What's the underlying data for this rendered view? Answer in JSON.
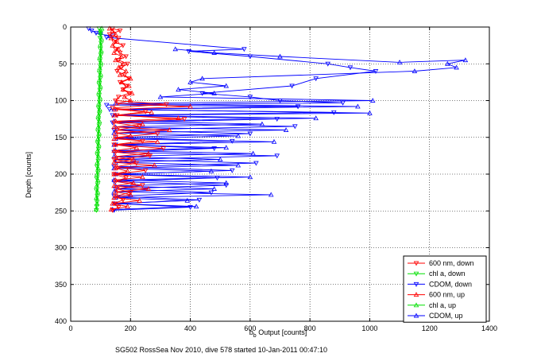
{
  "chart_data": {
    "type": "scatter",
    "title": "",
    "caption": "SG502 RossSea Nov 2010, dive 578 started 10-Jan-2011 00:47:10",
    "xlabel_main": "b",
    "xlabel_sub": "b",
    "xlabel_rest": " Output [counts]",
    "ylabel": "Depth [counts]",
    "xlim": [
      0,
      1400
    ],
    "ylim": [
      0,
      400
    ],
    "y_reversed": true,
    "grid": true,
    "x_ticks": [
      0,
      200,
      400,
      600,
      800,
      1000,
      1200,
      1400
    ],
    "y_ticks": [
      0,
      50,
      100,
      150,
      200,
      250,
      300,
      350,
      400
    ],
    "legend_position": "bottom-right",
    "series": [
      {
        "name": "600 nm, down",
        "color": "#ff0000",
        "marker": "triangle-down",
        "connected": true,
        "points": [
          [
            140,
            2
          ],
          [
            165,
            5
          ],
          [
            130,
            10
          ],
          [
            160,
            15
          ],
          [
            145,
            20
          ],
          [
            175,
            25
          ],
          [
            150,
            30
          ],
          [
            165,
            35
          ],
          [
            185,
            40
          ],
          [
            160,
            45
          ],
          [
            190,
            50
          ],
          [
            170,
            55
          ],
          [
            155,
            60
          ],
          [
            180,
            65
          ],
          [
            195,
            70
          ],
          [
            165,
            75
          ],
          [
            185,
            80
          ],
          [
            175,
            85
          ],
          [
            195,
            90
          ],
          [
            160,
            95
          ],
          [
            150,
            100
          ],
          [
            320,
            105
          ],
          [
            140,
            110
          ],
          [
            250,
            115
          ],
          [
            155,
            120
          ],
          [
            380,
            125
          ],
          [
            145,
            130
          ],
          [
            230,
            135
          ],
          [
            155,
            140
          ],
          [
            290,
            145
          ],
          [
            150,
            150
          ],
          [
            240,
            155
          ],
          [
            145,
            160
          ],
          [
            310,
            165
          ],
          [
            150,
            170
          ],
          [
            265,
            175
          ],
          [
            145,
            180
          ],
          [
            220,
            185
          ],
          [
            150,
            190
          ],
          [
            250,
            195
          ],
          [
            145,
            200
          ],
          [
            185,
            205
          ],
          [
            150,
            210
          ],
          [
            240,
            215
          ],
          [
            155,
            220
          ],
          [
            200,
            225
          ],
          [
            150,
            230
          ],
          [
            175,
            235
          ],
          [
            145,
            240
          ],
          [
            160,
            245
          ],
          [
            140,
            249
          ]
        ]
      },
      {
        "name": "chl a, down",
        "color": "#00e000",
        "marker": "triangle-down",
        "connected": true,
        "points": [
          [
            95,
            2
          ],
          [
            100,
            8
          ],
          [
            98,
            15
          ],
          [
            102,
            22
          ],
          [
            99,
            30
          ],
          [
            101,
            38
          ],
          [
            97,
            46
          ],
          [
            100,
            54
          ],
          [
            96,
            62
          ],
          [
            99,
            70
          ],
          [
            95,
            78
          ],
          [
            98,
            86
          ],
          [
            94,
            94
          ],
          [
            97,
            102
          ],
          [
            93,
            110
          ],
          [
            96,
            118
          ],
          [
            92,
            126
          ],
          [
            95,
            134
          ],
          [
            91,
            142
          ],
          [
            94,
            150
          ],
          [
            90,
            158
          ],
          [
            93,
            166
          ],
          [
            89,
            174
          ],
          [
            92,
            182
          ],
          [
            88,
            190
          ],
          [
            91,
            198
          ],
          [
            87,
            206
          ],
          [
            90,
            214
          ],
          [
            86,
            222
          ],
          [
            89,
            230
          ],
          [
            88,
            238
          ],
          [
            87,
            244
          ],
          [
            86,
            249
          ]
        ]
      },
      {
        "name": "CDOM, down",
        "color": "#0000ff",
        "marker": "triangle-down",
        "connected": true,
        "points": [
          [
            60,
            2
          ],
          [
            70,
            5
          ],
          [
            85,
            8
          ],
          [
            100,
            10
          ],
          [
            140,
            12
          ],
          [
            120,
            14
          ],
          [
            580,
            30
          ],
          [
            395,
            33
          ],
          [
            600,
            40
          ],
          [
            860,
            50
          ],
          [
            935,
            55
          ],
          [
            1020,
            60
          ],
          [
            820,
            70
          ],
          [
            740,
            80
          ],
          [
            440,
            90
          ],
          [
            600,
            95
          ],
          [
            700,
            100
          ],
          [
            910,
            103
          ],
          [
            120,
            106
          ],
          [
            760,
            108
          ],
          [
            130,
            112
          ],
          [
            880,
            116
          ],
          [
            140,
            120
          ],
          [
            690,
            125
          ],
          [
            140,
            130
          ],
          [
            750,
            135
          ],
          [
            145,
            140
          ],
          [
            600,
            145
          ],
          [
            150,
            150
          ],
          [
            540,
            155
          ],
          [
            150,
            160
          ],
          [
            480,
            165
          ],
          [
            145,
            170
          ],
          [
            690,
            175
          ],
          [
            150,
            180
          ],
          [
            620,
            185
          ],
          [
            145,
            190
          ],
          [
            540,
            195
          ],
          [
            150,
            200
          ],
          [
            490,
            205
          ],
          [
            145,
            210
          ],
          [
            520,
            215
          ],
          [
            150,
            220
          ],
          [
            470,
            225
          ],
          [
            145,
            230
          ],
          [
            430,
            235
          ],
          [
            150,
            240
          ],
          [
            400,
            245
          ],
          [
            145,
            249
          ]
        ]
      },
      {
        "name": "600 nm, up",
        "color": "#ff0000",
        "marker": "triangle-up",
        "connected": true,
        "points": [
          [
            135,
            248
          ],
          [
            190,
            244
          ],
          [
            140,
            240
          ],
          [
            230,
            236
          ],
          [
            145,
            232
          ],
          [
            200,
            228
          ],
          [
            150,
            224
          ],
          [
            260,
            220
          ],
          [
            145,
            216
          ],
          [
            210,
            212
          ],
          [
            150,
            208
          ],
          [
            240,
            204
          ],
          [
            145,
            200
          ],
          [
            190,
            196
          ],
          [
            150,
            192
          ],
          [
            280,
            188
          ],
          [
            145,
            184
          ],
          [
            210,
            180
          ],
          [
            150,
            176
          ],
          [
            260,
            172
          ],
          [
            145,
            168
          ],
          [
            220,
            164
          ],
          [
            150,
            160
          ],
          [
            290,
            156
          ],
          [
            145,
            152
          ],
          [
            200,
            148
          ],
          [
            150,
            144
          ],
          [
            330,
            140
          ],
          [
            145,
            136
          ],
          [
            240,
            132
          ],
          [
            150,
            128
          ],
          [
            360,
            124
          ],
          [
            145,
            120
          ],
          [
            270,
            116
          ],
          [
            150,
            112
          ],
          [
            400,
            108
          ],
          [
            155,
            104
          ],
          [
            200,
            100
          ],
          [
            180,
            95
          ],
          [
            205,
            90
          ],
          [
            175,
            85
          ],
          [
            195,
            80
          ],
          [
            170,
            75
          ],
          [
            200,
            70
          ],
          [
            165,
            65
          ],
          [
            185,
            60
          ],
          [
            160,
            55
          ],
          [
            175,
            50
          ],
          [
            150,
            45
          ],
          [
            170,
            40
          ],
          [
            145,
            35
          ],
          [
            160,
            30
          ],
          [
            140,
            25
          ],
          [
            155,
            20
          ],
          [
            135,
            15
          ],
          [
            150,
            10
          ],
          [
            140,
            5
          ],
          [
            130,
            2
          ]
        ]
      },
      {
        "name": "chl a, up",
        "color": "#00e000",
        "marker": "triangle-up",
        "connected": true,
        "points": [
          [
            85,
            248
          ],
          [
            88,
            240
          ],
          [
            86,
            232
          ],
          [
            90,
            224
          ],
          [
            87,
            216
          ],
          [
            91,
            208
          ],
          [
            88,
            200
          ],
          [
            92,
            192
          ],
          [
            89,
            184
          ],
          [
            93,
            176
          ],
          [
            90,
            168
          ],
          [
            94,
            160
          ],
          [
            91,
            152
          ],
          [
            95,
            144
          ],
          [
            92,
            136
          ],
          [
            96,
            128
          ],
          [
            93,
            120
          ],
          [
            97,
            112
          ],
          [
            94,
            104
          ],
          [
            98,
            96
          ],
          [
            95,
            88
          ],
          [
            99,
            80
          ],
          [
            96,
            72
          ],
          [
            100,
            64
          ],
          [
            97,
            56
          ],
          [
            101,
            48
          ],
          [
            98,
            40
          ],
          [
            102,
            32
          ],
          [
            99,
            24
          ],
          [
            103,
            16
          ],
          [
            100,
            8
          ],
          [
            104,
            2
          ]
        ]
      },
      {
        "name": "CDOM, up",
        "color": "#0000ff",
        "marker": "triangle-up",
        "connected": true,
        "points": [
          [
            140,
            248
          ],
          [
            420,
            244
          ],
          [
            145,
            240
          ],
          [
            390,
            236
          ],
          [
            150,
            232
          ],
          [
            670,
            228
          ],
          [
            145,
            224
          ],
          [
            480,
            220
          ],
          [
            150,
            216
          ],
          [
            520,
            212
          ],
          [
            145,
            208
          ],
          [
            600,
            204
          ],
          [
            150,
            200
          ],
          [
            470,
            196
          ],
          [
            145,
            192
          ],
          [
            560,
            188
          ],
          [
            150,
            184
          ],
          [
            500,
            180
          ],
          [
            145,
            176
          ],
          [
            610,
            172
          ],
          [
            150,
            168
          ],
          [
            520,
            164
          ],
          [
            145,
            160
          ],
          [
            680,
            156
          ],
          [
            150,
            152
          ],
          [
            560,
            148
          ],
          [
            145,
            144
          ],
          [
            720,
            140
          ],
          [
            150,
            136
          ],
          [
            640,
            132
          ],
          [
            145,
            128
          ],
          [
            820,
            124
          ],
          [
            150,
            120
          ],
          [
            1000,
            117
          ],
          [
            145,
            112
          ],
          [
            960,
            108
          ],
          [
            150,
            104
          ],
          [
            1010,
            100
          ],
          [
            300,
            95
          ],
          [
            480,
            90
          ],
          [
            360,
            85
          ],
          [
            520,
            80
          ],
          [
            400,
            75
          ],
          [
            440,
            70
          ],
          [
            1150,
            60
          ],
          [
            1290,
            55
          ],
          [
            1260,
            50
          ],
          [
            1320,
            45
          ],
          [
            1100,
            48
          ],
          [
            700,
            40
          ],
          [
            480,
            35
          ],
          [
            350,
            30
          ]
        ]
      }
    ]
  }
}
